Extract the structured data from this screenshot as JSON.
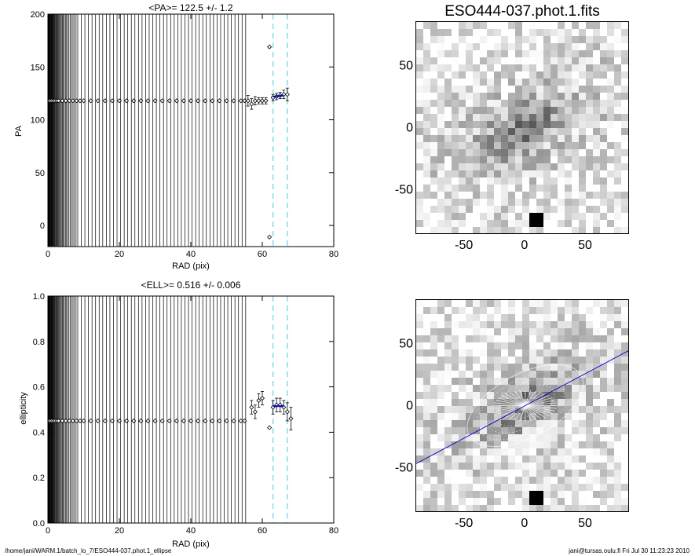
{
  "chart_data": [
    {
      "type": "scatter",
      "title": "<PA>= 122.5 +/-   1.2",
      "xlabel": "RAD (pix)",
      "ylabel": "PA",
      "xlim": [
        0,
        80
      ],
      "ylim": [
        -20,
        200
      ],
      "xticks": [
        "0",
        "20",
        "40",
        "60",
        "80"
      ],
      "yticks": [
        "0",
        "50",
        "100",
        "150",
        "200"
      ],
      "x": [
        0.5,
        1,
        1.5,
        2,
        2.5,
        3,
        4,
        5,
        6,
        7,
        8,
        9,
        10,
        12,
        14,
        16,
        18,
        20,
        22,
        24,
        26,
        28,
        30,
        32,
        34,
        36,
        38,
        40,
        42,
        44,
        46,
        48,
        50,
        52,
        54,
        55,
        56,
        57,
        58,
        59,
        60,
        61,
        62,
        62,
        63,
        64,
        65,
        66,
        67
      ],
      "values": [
        118,
        118,
        118,
        118,
        118,
        118,
        118,
        118,
        118,
        118,
        118,
        118,
        118,
        118,
        118,
        118,
        118,
        118,
        118,
        118,
        118,
        118,
        118,
        118,
        118,
        118,
        118,
        118,
        118,
        118,
        118,
        118,
        118,
        118,
        118,
        118,
        118,
        115,
        118,
        118,
        118,
        118,
        169,
        -11,
        121,
        122,
        123,
        124,
        124
      ],
      "errors": [
        0,
        0,
        0,
        0,
        0,
        0,
        0,
        0,
        0,
        0,
        0,
        0,
        0,
        0,
        0,
        0,
        0,
        0,
        0,
        0,
        0,
        0,
        0,
        0,
        0,
        0,
        0,
        0,
        0,
        0,
        0,
        0,
        0,
        0,
        0,
        0,
        5,
        5,
        4,
        3,
        3,
        3,
        0,
        0,
        3,
        3,
        3,
        4,
        6
      ],
      "fit": {
        "x": [
          63,
          66
        ],
        "y": [
          122,
          123
        ],
        "color": "#0000cc"
      },
      "vlines": [
        63,
        67
      ],
      "vline_color": "#88e0e6"
    },
    {
      "type": "scatter",
      "title": "<ELL>= 0.516 +/-  0.006",
      "xlabel": "RAD (pix)",
      "ylabel": "ellipticity",
      "xlim": [
        0,
        80
      ],
      "ylim": [
        0.0,
        1.0
      ],
      "xticks": [
        "0",
        "20",
        "40",
        "60",
        "80"
      ],
      "yticks": [
        "0.0",
        "0.2",
        "0.4",
        "0.6",
        "0.8",
        "1.0"
      ],
      "x": [
        0.5,
        1,
        1.5,
        2,
        2.5,
        3,
        4,
        5,
        6,
        7,
        8,
        9,
        10,
        12,
        14,
        16,
        18,
        20,
        22,
        24,
        26,
        28,
        30,
        32,
        34,
        36,
        38,
        40,
        42,
        44,
        46,
        48,
        50,
        52,
        54,
        55,
        57,
        58,
        59,
        60,
        62,
        63,
        64,
        65,
        66,
        67,
        68
      ],
      "values": [
        0.45,
        0.45,
        0.45,
        0.45,
        0.45,
        0.45,
        0.45,
        0.45,
        0.45,
        0.45,
        0.45,
        0.45,
        0.45,
        0.45,
        0.45,
        0.45,
        0.45,
        0.45,
        0.45,
        0.45,
        0.45,
        0.45,
        0.45,
        0.45,
        0.45,
        0.45,
        0.45,
        0.45,
        0.45,
        0.45,
        0.45,
        0.45,
        0.45,
        0.45,
        0.45,
        0.45,
        0.51,
        0.49,
        0.54,
        0.55,
        0.42,
        0.51,
        0.52,
        0.52,
        0.51,
        0.49,
        0.46
      ],
      "errors": [
        0,
        0,
        0,
        0,
        0,
        0,
        0,
        0,
        0,
        0,
        0,
        0,
        0,
        0,
        0,
        0,
        0,
        0,
        0,
        0,
        0,
        0,
        0,
        0,
        0,
        0,
        0,
        0,
        0,
        0,
        0,
        0,
        0,
        0,
        0,
        0,
        0.03,
        0.03,
        0.03,
        0.03,
        0,
        0.03,
        0.03,
        0.03,
        0.03,
        0.04,
        0.05
      ],
      "fit": {
        "x": [
          63,
          66
        ],
        "y": [
          0.515,
          0.515
        ],
        "color": "#0000cc"
      },
      "vlines": [
        63,
        67
      ],
      "vline_color": "#88e0e6"
    },
    {
      "type": "heatmap",
      "title": "ESO444-037.phot.1.fits",
      "xlim": [
        -90,
        85
      ],
      "ylim": [
        -85,
        85
      ],
      "xticks": [
        "-50",
        "0",
        "50"
      ],
      "yticks": [
        "50",
        "0",
        "-50"
      ],
      "colormap": "gray, inverted"
    },
    {
      "type": "heatmap",
      "title": "",
      "xlim": [
        -90,
        85
      ],
      "ylim": [
        -85,
        85
      ],
      "xticks": [
        "-50",
        "0",
        "50"
      ],
      "yticks": [
        "50",
        "0",
        "-50"
      ],
      "colormap": "gray, inverted",
      "major_axis_color": "#0000cc"
    }
  ],
  "footer": {
    "left": "/home/jani/WARM.1/batch_lo_7/ESO444-037.phot.1_ellipse",
    "right": "jani@tursas.oulu.fi  Fri Jul 30 11:23:23 2010"
  }
}
